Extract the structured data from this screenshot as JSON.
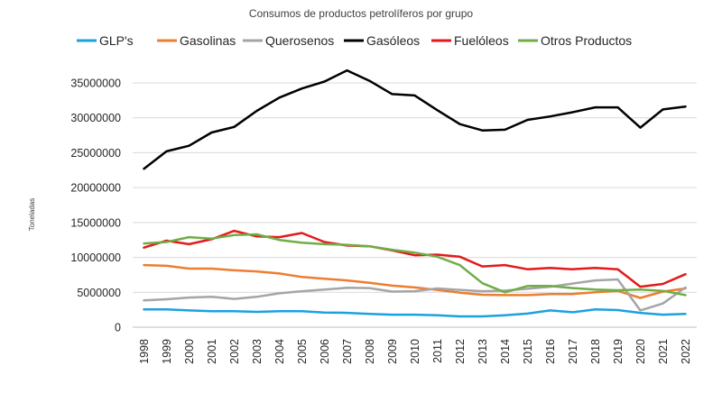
{
  "chart_data": {
    "type": "line",
    "title": "Consumos de productos petrolíferos por grupo",
    "ylabel": "Toneladas",
    "xlabel": "",
    "ylim": [
      0,
      35000000
    ],
    "yticks": [
      0,
      5000000,
      10000000,
      15000000,
      20000000,
      25000000,
      30000000,
      35000000
    ],
    "ytick_labels": [
      "0",
      "5000000",
      "10000000",
      "15000000",
      "20000000",
      "25000000",
      "30000000",
      "35000000"
    ],
    "grid": "horizontal",
    "legend_position": "top",
    "x": [
      "1998",
      "1999",
      "2000",
      "2001",
      "2002",
      "2003",
      "2004",
      "2005",
      "2006",
      "2007",
      "2008",
      "2009",
      "2010",
      "2011",
      "2012",
      "2013",
      "2014",
      "2015",
      "2016",
      "2017",
      "2018",
      "2019",
      "2020",
      "2021",
      "2022"
    ],
    "series": [
      {
        "name": "GLP's",
        "color": "#1BA1E2",
        "values": [
          2550000,
          2550000,
          2400000,
          2300000,
          2300000,
          2200000,
          2300000,
          2300000,
          2100000,
          2050000,
          1900000,
          1800000,
          1800000,
          1700000,
          1550000,
          1550000,
          1700000,
          1950000,
          2400000,
          2150000,
          2550000,
          2450000,
          2050000,
          1800000,
          1900000
        ]
      },
      {
        "name": "Gasolinas",
        "color": "#ED7D31",
        "values": [
          8900000,
          8800000,
          8400000,
          8400000,
          8150000,
          8000000,
          7700000,
          7200000,
          6950000,
          6700000,
          6350000,
          5950000,
          5700000,
          5350000,
          4950000,
          4650000,
          4600000,
          4600000,
          4750000,
          4750000,
          5000000,
          5200000,
          4200000,
          5100000,
          5550000
        ]
      },
      {
        "name": "Querosenos",
        "color": "#A5A5A5",
        "values": [
          3850000,
          4000000,
          4250000,
          4350000,
          4050000,
          4350000,
          4850000,
          5150000,
          5400000,
          5650000,
          5600000,
          5100000,
          5150000,
          5550000,
          5350000,
          5150000,
          5250000,
          5500000,
          5800000,
          6250000,
          6700000,
          6850000,
          2400000,
          3400000,
          5700000
        ]
      },
      {
        "name": "Gasóleos",
        "color": "#000000",
        "values": [
          22700000,
          25200000,
          26000000,
          27900000,
          28700000,
          31000000,
          32900000,
          34200000,
          35200000,
          36800000,
          35300000,
          33400000,
          33200000,
          31100000,
          29100000,
          28200000,
          28300000,
          29700000,
          30200000,
          30800000,
          31500000,
          31500000,
          28600000,
          31200000,
          31600000
        ]
      },
      {
        "name": "Fuelóleos",
        "color": "#E31A1C",
        "values": [
          11400000,
          12400000,
          11900000,
          12600000,
          13800000,
          13000000,
          12900000,
          13500000,
          12200000,
          11700000,
          11600000,
          11000000,
          10300000,
          10400000,
          10100000,
          8700000,
          8900000,
          8300000,
          8500000,
          8300000,
          8500000,
          8300000,
          5800000,
          6200000,
          7600000
        ]
      },
      {
        "name": "Otros Productos",
        "color": "#70AD47",
        "values": [
          12000000,
          12200000,
          12900000,
          12700000,
          13200000,
          13300000,
          12500000,
          12100000,
          11900000,
          11800000,
          11600000,
          11100000,
          10700000,
          10100000,
          8900000,
          6300000,
          5000000,
          5900000,
          5900000,
          5600000,
          5400000,
          5300000,
          5400000,
          5200000,
          4600000
        ]
      }
    ]
  }
}
